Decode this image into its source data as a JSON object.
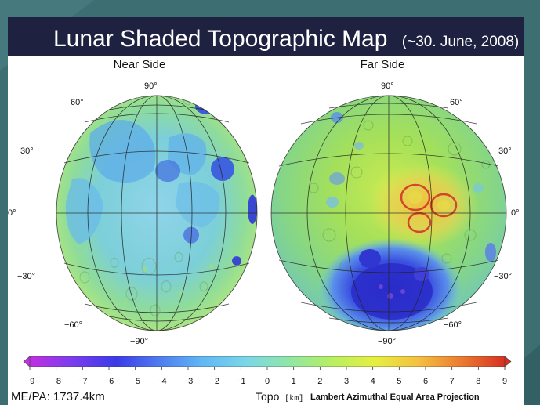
{
  "title": "Lunar Shaded Topographic Map",
  "title_date": "(~30. June, 2008)",
  "hemispheres": [
    {
      "name": "Near Side",
      "lat_labels": {
        "n90": "90°",
        "n60": "60°",
        "n30": "30°",
        "eq": "0°",
        "s30": "−30°",
        "s60": "−60°",
        "s90": "−90°"
      }
    },
    {
      "name": "Far Side",
      "lat_labels": {
        "n90": "90°",
        "n60": "60°",
        "n30": "30°",
        "eq": "0°",
        "s30": "−30°",
        "s60": "−60°",
        "s90": "−90°"
      }
    }
  ],
  "colorbar": {
    "ticks": [
      "−9",
      "−8",
      "−7",
      "−6",
      "−5",
      "−4",
      "−3",
      "−2",
      "−1",
      "0",
      "1",
      "2",
      "3",
      "4",
      "5",
      "6",
      "7",
      "8",
      "9"
    ],
    "min": -9,
    "max": 9,
    "label": "Topo",
    "unit": "[km]",
    "colors": [
      "#c030e0",
      "#7a3cf0",
      "#3a3ae8",
      "#4f7cf0",
      "#60b8f5",
      "#7ad6e8",
      "#8fe6a6",
      "#b8ef60",
      "#e6ef40",
      "#f5c040",
      "#ec7a30",
      "#d83020"
    ]
  },
  "footer": {
    "radius_text": "ME/PA: 1737.4km",
    "projection": "Lambert Azimuthal Equal Area Projection"
  },
  "colors": {
    "frame": "#3d6e72",
    "title_bg": "#1e2140",
    "title_text": "#ffffff"
  }
}
